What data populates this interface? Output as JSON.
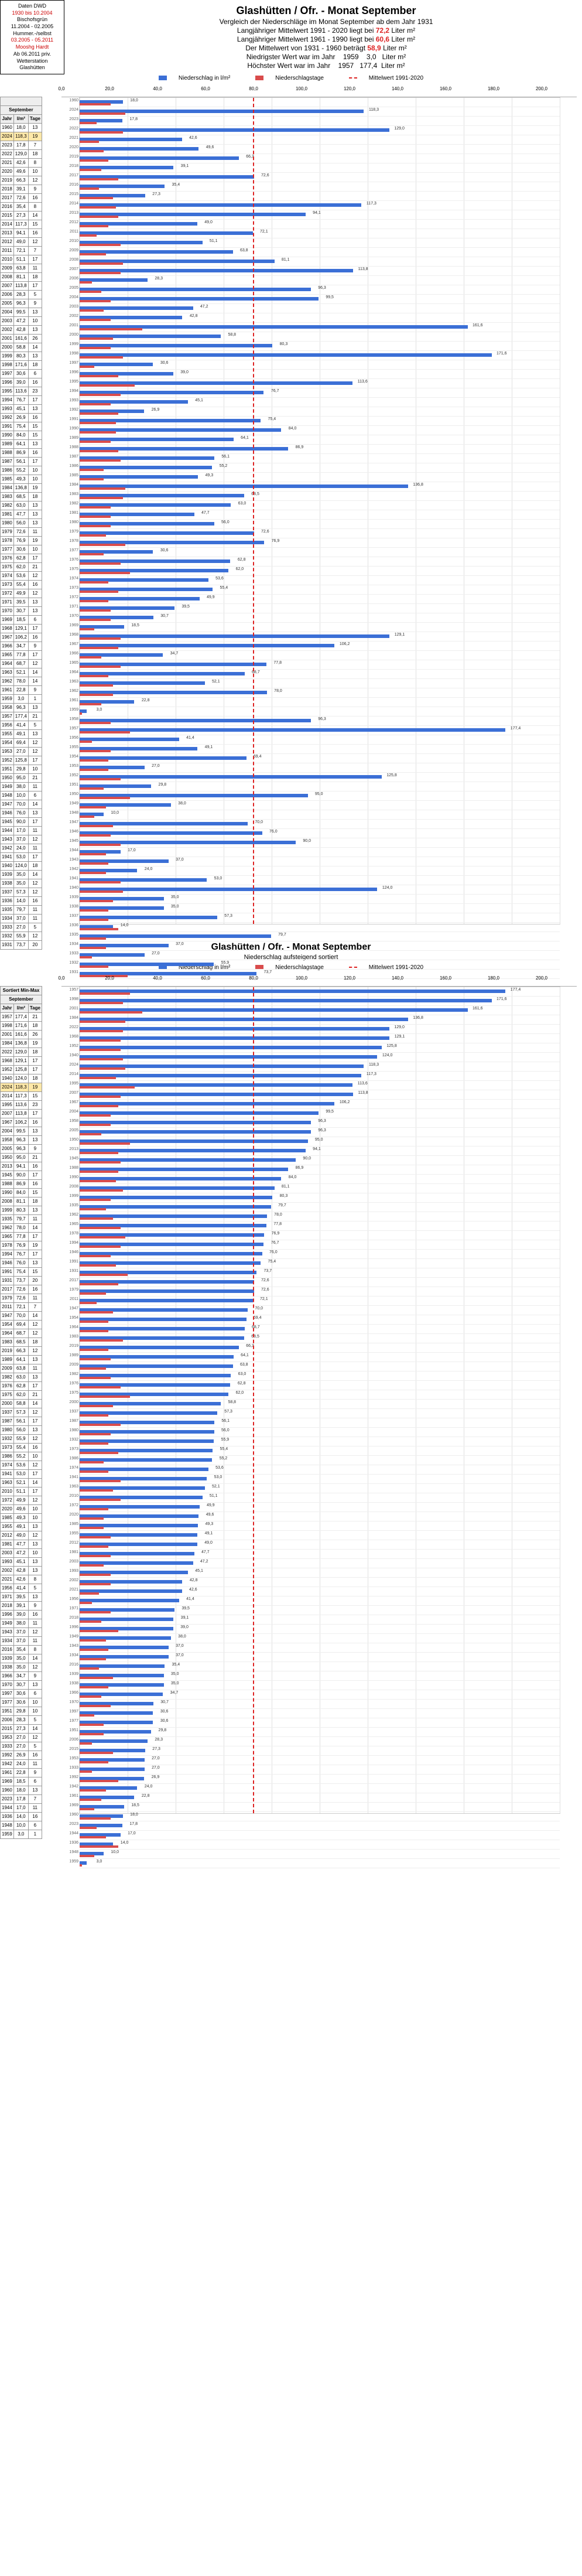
{
  "info_box": {
    "l1": "Daten DWD",
    "l2": "1930 bis 10.2004",
    "l3": "Bischofsgrün",
    "l4": "11.2004 - 02.2005",
    "l5": "Hummer.-/selbst",
    "l6": "03.2005 - 05.2011",
    "l7": "Mooshg Hardt",
    "l8": "Ab 06.2011 priv.",
    "l9": "Wetterstation",
    "l10": "Glashütten"
  },
  "header": {
    "title": "Glashütten / Ofr. - Monat September",
    "sub1": "Vergleich der Niederschläge im  Monat September ab dem Jahr 1931",
    "r1a": "Langjähriger Mittelwert 1991 - 2020  liegt bei",
    "r1b": "72,2",
    "r1c": "Liter m²",
    "r2a": "Langjähriger Mittelwert 1961 - 1990  liegt bei",
    "r2b": "60,6",
    "r2c": "Liter m²",
    "r3a": "Der Mittelwert von  1931 - 1960  beträgt",
    "r3b": "58,9",
    "r3c": "Liter m²",
    "r4a": "Niedrigster Wert war im Jahr",
    "r4b": "1959",
    "r4c": "3,0",
    "r4d": "Liter m²",
    "r5a": "Höchster Wert war im Jahr",
    "r5b": "1957",
    "r5c": "177,4",
    "r5d": "Liter m²"
  },
  "legend": {
    "l1": "Niederschlag in l/m²",
    "l2": "Niederschlagstage",
    "l3": "Mittelwert 1991-2020"
  },
  "axis": {
    "max": 200,
    "ticks": [
      0,
      20,
      40,
      60,
      80,
      100,
      120,
      140,
      160,
      180,
      200
    ]
  },
  "ref_line": 72.2,
  "table_head": {
    "c1": "Jahr",
    "c2": "l/m²",
    "c3": "Tage",
    "title": "September"
  },
  "series1": [
    {
      "jahr": 1960,
      "v": "18,0",
      "t": 13
    },
    {
      "jahr": 2024,
      "v": "118,3",
      "t": 19
    },
    {
      "jahr": 2023,
      "v": "17,8",
      "t": 7
    },
    {
      "jahr": 2022,
      "v": "129,0",
      "t": 18
    },
    {
      "jahr": 2021,
      "v": "42,6",
      "t": 8
    },
    {
      "jahr": 2020,
      "v": "49,6",
      "t": 10
    },
    {
      "jahr": 2019,
      "v": "66,3",
      "t": 12
    },
    {
      "jahr": 2018,
      "v": "39,1",
      "t": 9
    },
    {
      "jahr": 2017,
      "v": "72,6",
      "t": 16
    },
    {
      "jahr": 2016,
      "v": "35,4",
      "t": 8
    },
    {
      "jahr": 2015,
      "v": "27,3",
      "t": 14
    },
    {
      "jahr": 2014,
      "v": "117,3",
      "t": 15
    },
    {
      "jahr": 2013,
      "v": "94,1",
      "t": 16
    },
    {
      "jahr": 2012,
      "v": "49,0",
      "t": 12
    },
    {
      "jahr": 2011,
      "v": "72,1",
      "t": 7
    },
    {
      "jahr": 2010,
      "v": "51,1",
      "t": 17
    },
    {
      "jahr": 2009,
      "v": "63,8",
      "t": 11
    },
    {
      "jahr": 2008,
      "v": "81,1",
      "t": 18
    },
    {
      "jahr": 2007,
      "v": "113,8",
      "t": 17
    },
    {
      "jahr": 2006,
      "v": "28,3",
      "t": 5
    },
    {
      "jahr": 2005,
      "v": "96,3",
      "t": 9
    },
    {
      "jahr": 2004,
      "v": "99,5",
      "t": 13
    },
    {
      "jahr": 2003,
      "v": "47,2",
      "t": 10
    },
    {
      "jahr": 2002,
      "v": "42,8",
      "t": 13
    },
    {
      "jahr": 2001,
      "v": "161,6",
      "t": 26
    },
    {
      "jahr": 2000,
      "v": "58,8",
      "t": 14
    },
    {
      "jahr": 1999,
      "v": "80,3",
      "t": 13
    },
    {
      "jahr": 1998,
      "v": "171,6",
      "t": 18
    },
    {
      "jahr": 1997,
      "v": "30,6",
      "t": 6
    },
    {
      "jahr": 1996,
      "v": "39,0",
      "t": 16
    },
    {
      "jahr": 1995,
      "v": "113,6",
      "t": 23
    },
    {
      "jahr": 1994,
      "v": "76,7",
      "t": 17
    },
    {
      "jahr": 1993,
      "v": "45,1",
      "t": 13
    },
    {
      "jahr": 1992,
      "v": "26,9",
      "t": 16
    },
    {
      "jahr": 1991,
      "v": "75,4",
      "t": 15
    },
    {
      "jahr": 1990,
      "v": "84,0",
      "t": 15
    },
    {
      "jahr": 1989,
      "v": "64,1",
      "t": 13
    },
    {
      "jahr": 1988,
      "v": "86,9",
      "t": 16
    },
    {
      "jahr": 1987,
      "v": "56,1",
      "t": 17
    },
    {
      "jahr": 1986,
      "v": "55,2",
      "t": 10
    },
    {
      "jahr": 1985,
      "v": "49,3",
      "t": 10
    },
    {
      "jahr": 1984,
      "v": "136,8",
      "t": 19
    },
    {
      "jahr": 1983,
      "v": "68,5",
      "t": 18
    },
    {
      "jahr": 1982,
      "v": "63,0",
      "t": 13
    },
    {
      "jahr": 1981,
      "v": "47,7",
      "t": 13
    },
    {
      "jahr": 1980,
      "v": "56,0",
      "t": 13
    },
    {
      "jahr": 1979,
      "v": "72,6",
      "t": 11
    },
    {
      "jahr": 1978,
      "v": "76,9",
      "t": 19
    },
    {
      "jahr": 1977,
      "v": "30,6",
      "t": 10
    },
    {
      "jahr": 1976,
      "v": "62,8",
      "t": 17
    },
    {
      "jahr": 1975,
      "v": "62,0",
      "t": 21
    },
    {
      "jahr": 1974,
      "v": "53,6",
      "t": 12
    },
    {
      "jahr": 1973,
      "v": "55,4",
      "t": 16
    },
    {
      "jahr": 1972,
      "v": "49,9",
      "t": 12
    },
    {
      "jahr": 1971,
      "v": "39,5",
      "t": 13
    },
    {
      "jahr": 1970,
      "v": "30,7",
      "t": 13
    },
    {
      "jahr": 1969,
      "v": "18,5",
      "t": 6
    },
    {
      "jahr": 1968,
      "v": "129,1",
      "t": 17
    },
    {
      "jahr": 1967,
      "v": "106,2",
      "t": 16
    },
    {
      "jahr": 1966,
      "v": "34,7",
      "t": 9
    },
    {
      "jahr": 1965,
      "v": "77,8",
      "t": 17
    },
    {
      "jahr": 1964,
      "v": "68,7",
      "t": 12
    },
    {
      "jahr": 1963,
      "v": "52,1",
      "t": 14
    },
    {
      "jahr": 1962,
      "v": "78,0",
      "t": 14
    },
    {
      "jahr": 1961,
      "v": "22,8",
      "t": 9
    },
    {
      "jahr": 1959,
      "v": "3,0",
      "t": 1
    },
    {
      "jahr": 1958,
      "v": "96,3",
      "t": 13
    },
    {
      "jahr": 1957,
      "v": "177,4",
      "t": 21
    },
    {
      "jahr": 1956,
      "v": "41,4",
      "t": 5
    },
    {
      "jahr": 1955,
      "v": "49,1",
      "t": 13
    },
    {
      "jahr": 1954,
      "v": "69,4",
      "t": 12
    },
    {
      "jahr": 1953,
      "v": "27,0",
      "t": 12
    },
    {
      "jahr": 1952,
      "v": "125,8",
      "t": 17
    },
    {
      "jahr": 1951,
      "v": "29,8",
      "t": 10
    },
    {
      "jahr": 1950,
      "v": "95,0",
      "t": 21
    },
    {
      "jahr": 1949,
      "v": "38,0",
      "t": 11
    },
    {
      "jahr": 1948,
      "v": "10,0",
      "t": 6
    },
    {
      "jahr": 1947,
      "v": "70,0",
      "t": 14
    },
    {
      "jahr": 1946,
      "v": "76,0",
      "t": 13
    },
    {
      "jahr": 1945,
      "v": "90,0",
      "t": 17
    },
    {
      "jahr": 1944,
      "v": "17,0",
      "t": 11
    },
    {
      "jahr": 1943,
      "v": "37,0",
      "t": 12
    },
    {
      "jahr": 1942,
      "v": "24,0",
      "t": 11
    },
    {
      "jahr": 1941,
      "v": "53,0",
      "t": 17
    },
    {
      "jahr": 1940,
      "v": "124,0",
      "t": 18
    },
    {
      "jahr": 1939,
      "v": "35,0",
      "t": 14
    },
    {
      "jahr": 1938,
      "v": "35,0",
      "t": 12
    },
    {
      "jahr": 1937,
      "v": "57,3",
      "t": 12
    },
    {
      "jahr": 1936,
      "v": "14,0",
      "t": 16
    },
    {
      "jahr": 1935,
      "v": "79,7",
      "t": 11
    },
    {
      "jahr": 1934,
      "v": "37,0",
      "t": 11
    },
    {
      "jahr": 1933,
      "v": "27,0",
      "t": 5
    },
    {
      "jahr": 1932,
      "v": "55,9",
      "t": 12
    },
    {
      "jahr": 1931,
      "v": "73,7",
      "t": 20
    }
  ],
  "section2": {
    "title": "Glashütten / Ofr. - Monat September",
    "sub": "Niederschlag aufsteigend sortiert",
    "table_title": "Sortiert Min-Max"
  },
  "series2": [
    {
      "jahr": 1957,
      "v": "177,4",
      "t": 21
    },
    {
      "jahr": 1998,
      "v": "171,6",
      "t": 18
    },
    {
      "jahr": 2001,
      "v": "161,6",
      "t": 26
    },
    {
      "jahr": 1984,
      "v": "136,8",
      "t": 19
    },
    {
      "jahr": 2022,
      "v": "129,0",
      "t": 18
    },
    {
      "jahr": 1968,
      "v": "129,1",
      "t": 17
    },
    {
      "jahr": 1952,
      "v": "125,8",
      "t": 17
    },
    {
      "jahr": 1940,
      "v": "124,0",
      "t": 18
    },
    {
      "jahr": 2024,
      "v": "118,3",
      "t": 19
    },
    {
      "jahr": 2014,
      "v": "117,3",
      "t": 15
    },
    {
      "jahr": 1995,
      "v": "113,6",
      "t": 23
    },
    {
      "jahr": 2007,
      "v": "113,8",
      "t": 17
    },
    {
      "jahr": 1967,
      "v": "106,2",
      "t": 16
    },
    {
      "jahr": 2004,
      "v": "99,5",
      "t": 13
    },
    {
      "jahr": 1958,
      "v": "96,3",
      "t": 13
    },
    {
      "jahr": 2005,
      "v": "96,3",
      "t": 9
    },
    {
      "jahr": 1950,
      "v": "95,0",
      "t": 21
    },
    {
      "jahr": 2013,
      "v": "94,1",
      "t": 16
    },
    {
      "jahr": 1945,
      "v": "90,0",
      "t": 17
    },
    {
      "jahr": 1988,
      "v": "86,9",
      "t": 16
    },
    {
      "jahr": 1990,
      "v": "84,0",
      "t": 15
    },
    {
      "jahr": 2008,
      "v": "81,1",
      "t": 18
    },
    {
      "jahr": 1999,
      "v": "80,3",
      "t": 13
    },
    {
      "jahr": 1935,
      "v": "79,7",
      "t": 11
    },
    {
      "jahr": 1962,
      "v": "78,0",
      "t": 14
    },
    {
      "jahr": 1965,
      "v": "77,8",
      "t": 17
    },
    {
      "jahr": 1978,
      "v": "76,9",
      "t": 19
    },
    {
      "jahr": 1994,
      "v": "76,7",
      "t": 17
    },
    {
      "jahr": 1946,
      "v": "76,0",
      "t": 13
    },
    {
      "jahr": 1991,
      "v": "75,4",
      "t": 15
    },
    {
      "jahr": 1931,
      "v": "73,7",
      "t": 20
    },
    {
      "jahr": 2017,
      "v": "72,6",
      "t": 16
    },
    {
      "jahr": 1979,
      "v": "72,6",
      "t": 11
    },
    {
      "jahr": 2011,
      "v": "72,1",
      "t": 7
    },
    {
      "jahr": 1947,
      "v": "70,0",
      "t": 14
    },
    {
      "jahr": 1954,
      "v": "69,4",
      "t": 12
    },
    {
      "jahr": 1964,
      "v": "68,7",
      "t": 12
    },
    {
      "jahr": 1983,
      "v": "68,5",
      "t": 18
    },
    {
      "jahr": 2019,
      "v": "66,3",
      "t": 12
    },
    {
      "jahr": 1989,
      "v": "64,1",
      "t": 13
    },
    {
      "jahr": 2009,
      "v": "63,8",
      "t": 11
    },
    {
      "jahr": 1982,
      "v": "63,0",
      "t": 13
    },
    {
      "jahr": 1976,
      "v": "62,8",
      "t": 17
    },
    {
      "jahr": 1975,
      "v": "62,0",
      "t": 21
    },
    {
      "jahr": 2000,
      "v": "58,8",
      "t": 14
    },
    {
      "jahr": 1937,
      "v": "57,3",
      "t": 12
    },
    {
      "jahr": 1987,
      "v": "56,1",
      "t": 17
    },
    {
      "jahr": 1980,
      "v": "56,0",
      "t": 13
    },
    {
      "jahr": 1932,
      "v": "55,9",
      "t": 12
    },
    {
      "jahr": 1973,
      "v": "55,4",
      "t": 16
    },
    {
      "jahr": 1986,
      "v": "55,2",
      "t": 10
    },
    {
      "jahr": 1974,
      "v": "53,6",
      "t": 12
    },
    {
      "jahr": 1941,
      "v": "53,0",
      "t": 17
    },
    {
      "jahr": 1963,
      "v": "52,1",
      "t": 14
    },
    {
      "jahr": 2010,
      "v": "51,1",
      "t": 17
    },
    {
      "jahr": 1972,
      "v": "49,9",
      "t": 12
    },
    {
      "jahr": 2020,
      "v": "49,6",
      "t": 10
    },
    {
      "jahr": 1985,
      "v": "49,3",
      "t": 10
    },
    {
      "jahr": 1955,
      "v": "49,1",
      "t": 13
    },
    {
      "jahr": 2012,
      "v": "49,0",
      "t": 12
    },
    {
      "jahr": 1981,
      "v": "47,7",
      "t": 13
    },
    {
      "jahr": 2003,
      "v": "47,2",
      "t": 10
    },
    {
      "jahr": 1993,
      "v": "45,1",
      "t": 13
    },
    {
      "jahr": 2002,
      "v": "42,8",
      "t": 13
    },
    {
      "jahr": 2021,
      "v": "42,6",
      "t": 8
    },
    {
      "jahr": 1956,
      "v": "41,4",
      "t": 5
    },
    {
      "jahr": 1971,
      "v": "39,5",
      "t": 13
    },
    {
      "jahr": 2018,
      "v": "39,1",
      "t": 9
    },
    {
      "jahr": 1996,
      "v": "39,0",
      "t": 16
    },
    {
      "jahr": 1949,
      "v": "38,0",
      "t": 11
    },
    {
      "jahr": 1943,
      "v": "37,0",
      "t": 12
    },
    {
      "jahr": 1934,
      "v": "37,0",
      "t": 11
    },
    {
      "jahr": 2016,
      "v": "35,4",
      "t": 8
    },
    {
      "jahr": 1939,
      "v": "35,0",
      "t": 14
    },
    {
      "jahr": 1938,
      "v": "35,0",
      "t": 12
    },
    {
      "jahr": 1966,
      "v": "34,7",
      "t": 9
    },
    {
      "jahr": 1970,
      "v": "30,7",
      "t": 13
    },
    {
      "jahr": 1997,
      "v": "30,6",
      "t": 6
    },
    {
      "jahr": 1977,
      "v": "30,6",
      "t": 10
    },
    {
      "jahr": 1951,
      "v": "29,8",
      "t": 10
    },
    {
      "jahr": 2006,
      "v": "28,3",
      "t": 5
    },
    {
      "jahr": 2015,
      "v": "27,3",
      "t": 14
    },
    {
      "jahr": 1953,
      "v": "27,0",
      "t": 12
    },
    {
      "jahr": 1933,
      "v": "27,0",
      "t": 5
    },
    {
      "jahr": 1992,
      "v": "26,9",
      "t": 16
    },
    {
      "jahr": 1942,
      "v": "24,0",
      "t": 11
    },
    {
      "jahr": 1961,
      "v": "22,8",
      "t": 9
    },
    {
      "jahr": 1969,
      "v": "18,5",
      "t": 6
    },
    {
      "jahr": 1960,
      "v": "18,0",
      "t": 13
    },
    {
      "jahr": 2023,
      "v": "17,8",
      "t": 7
    },
    {
      "jahr": 1944,
      "v": "17,0",
      "t": 11
    },
    {
      "jahr": 1936,
      "v": "14,0",
      "t": 16
    },
    {
      "jahr": 1948,
      "v": "10,0",
      "t": 6
    },
    {
      "jahr": 1959,
      "v": "3,0",
      "t": 1
    }
  ],
  "colors": {
    "blue": "#3b6fd6",
    "red": "#d94c4c",
    "ref": "#d22",
    "hl": "#ffe8a8"
  }
}
